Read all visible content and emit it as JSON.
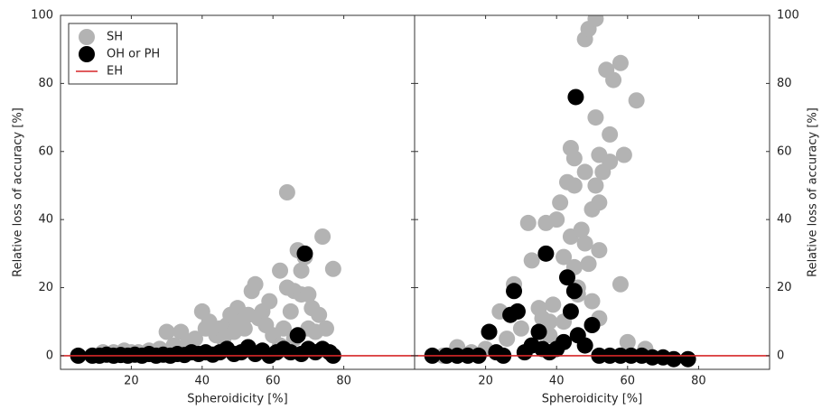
{
  "chart_data": [
    {
      "type": "scatter",
      "xlabel": "Spheroidicity [%]",
      "ylabel": "Relative loss of accuracy [%]",
      "xlim": [
        0,
        100
      ],
      "ylim": [
        -4,
        100
      ],
      "xticks": [
        20,
        40,
        60,
        80
      ],
      "yticks": [
        0,
        20,
        40,
        60,
        80,
        100
      ],
      "yaxis_position": "left",
      "legend": "upper left",
      "series": [
        {
          "name": "SH",
          "color": "#b3b3b3",
          "x": [
            12,
            15,
            18,
            20,
            22,
            25,
            28,
            30,
            32,
            34,
            36,
            38,
            40,
            41,
            42,
            44,
            45,
            46,
            47,
            48,
            49,
            50,
            51,
            52,
            53,
            54,
            55,
            56,
            57,
            58,
            59,
            60,
            62,
            63,
            64,
            64,
            65,
            66,
            67,
            68,
            68,
            69,
            70,
            70,
            71,
            72,
            73,
            74,
            75,
            77,
            62,
            66
          ],
          "values": [
            1,
            1,
            1.5,
            1,
            1,
            1.5,
            2,
            7,
            3,
            7,
            4,
            5,
            13,
            8,
            10,
            6,
            8,
            5,
            9,
            12,
            7,
            14,
            10,
            8,
            12,
            19,
            21,
            11,
            13,
            9,
            16,
            6,
            25,
            8,
            48,
            20,
            13,
            19,
            31,
            25,
            18,
            29,
            18,
            8,
            14,
            7,
            12,
            35,
            8,
            25.5,
            3,
            5
          ]
        },
        {
          "name": "OH or PH",
          "color": "#000000",
          "x": [
            5,
            9,
            11,
            13,
            15,
            17,
            19,
            21,
            23,
            25,
            27,
            29,
            31,
            33,
            35,
            37,
            39,
            41,
            43,
            45,
            47,
            49,
            51,
            53,
            55,
            57,
            59,
            61,
            63,
            65,
            67,
            68,
            69,
            70,
            72,
            74,
            76,
            77
          ],
          "values": [
            0,
            0,
            0,
            0.3,
            0,
            0.2,
            0,
            0.3,
            0,
            0.5,
            0,
            0.3,
            0,
            0.5,
            0.2,
            1,
            0.5,
            1,
            0.3,
            1,
            2,
            0.5,
            1,
            2.5,
            0.5,
            1.5,
            0,
            1,
            2,
            1,
            6,
            0.5,
            30,
            2,
            1,
            2,
            1,
            0
          ]
        },
        {
          "name": "EH",
          "color": "#d62728",
          "type": "line",
          "x": [
            0,
            100
          ],
          "values": [
            0,
            0
          ]
        }
      ]
    },
    {
      "type": "scatter",
      "xlabel": "Spheroidicity [%]",
      "ylabel": "Relative loss of accuracy [%]",
      "xlim": [
        0,
        100
      ],
      "ylim": [
        -4,
        100
      ],
      "xticks": [
        20,
        40,
        60,
        80
      ],
      "yticks": [
        0,
        20,
        40,
        60,
        80,
        100
      ],
      "yaxis_position": "right",
      "series": [
        {
          "name": "SH",
          "color": "#b3b3b3",
          "x": [
            8,
            12,
            16,
            20,
            24,
            26,
            28,
            30,
            32,
            33,
            35,
            36,
            37,
            38,
            39,
            40,
            41,
            42,
            44,
            43,
            45,
            44,
            45,
            45,
            46,
            48,
            47,
            48,
            48,
            49,
            49,
            51,
            50,
            51,
            51,
            52,
            52,
            52,
            54,
            53,
            56,
            55,
            55,
            58,
            59,
            58,
            62.5,
            50,
            52,
            46,
            42,
            38,
            60,
            65
          ],
          "values": [
            0,
            2.5,
            1,
            2,
            13,
            5,
            21,
            8,
            39,
            28,
            14,
            11,
            39,
            10,
            15,
            40,
            45,
            29,
            61,
            51,
            58,
            35,
            50,
            26,
            20,
            93,
            37,
            33,
            54,
            27,
            96,
            70,
            43,
            99,
            50,
            59,
            31,
            45,
            84,
            54,
            81,
            65,
            57,
            86,
            59,
            21,
            75,
            16,
            11,
            18,
            10,
            6,
            4,
            2
          ]
        },
        {
          "name": "OH or PH",
          "color": "#000000",
          "x": [
            5,
            9,
            12,
            15,
            18,
            21,
            23,
            25,
            27,
            28,
            29,
            31,
            33,
            35,
            36,
            37,
            38,
            40,
            42,
            43,
            44,
            45.4,
            45,
            46,
            48,
            50,
            52,
            55,
            58,
            61,
            64,
            67,
            70,
            73,
            77
          ],
          "values": [
            0,
            0,
            0,
            0,
            0,
            7,
            1,
            0,
            12,
            19,
            13,
            1,
            3,
            7,
            2,
            30,
            1,
            2,
            4,
            23,
            13,
            76,
            19,
            6,
            3,
            9,
            0,
            0,
            0,
            0,
            0,
            -0.5,
            -0.5,
            -1,
            -1
          ]
        },
        {
          "name": "EH",
          "color": "#d62728",
          "type": "line",
          "x": [
            0,
            100
          ],
          "values": [
            0,
            0
          ]
        }
      ]
    }
  ]
}
